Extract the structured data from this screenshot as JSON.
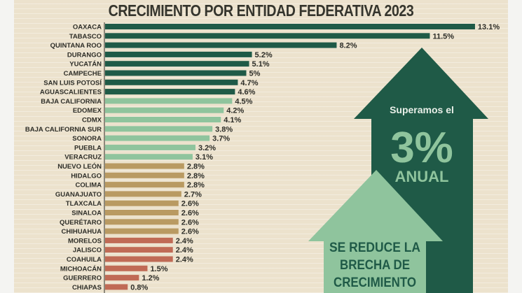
{
  "chart_data": {
    "type": "bar",
    "orientation": "horizontal",
    "title": "CRECIMIENTO POR ENTIDAD FEDERATIVA 2023",
    "value_suffix": "%",
    "categories": [
      "OAXACA",
      "TABASCO",
      "QUINTANA ROO",
      "DURANGO",
      "YUCATÁN",
      "CAMPECHE",
      "SAN LUIS POTOSÍ",
      "AGUASCALIENTES",
      "BAJA CALIFORNIA",
      "EDOMEX",
      "CDMX",
      "BAJA CALIFORNIA SUR",
      "SONORA",
      "PUEBLA",
      "VERACRUZ",
      "NUEVO LEÓN",
      "HIDALGO",
      "COLIMA",
      "GUANAJUATO",
      "TLAXCALA",
      "SINALOA",
      "QUERÉTARO",
      "CHIHUAHUA",
      "MORELOS",
      "JALISCO",
      "COAHUILA",
      "MICHOACÁN",
      "GUERRERO",
      "CHIAPAS"
    ],
    "values": [
      13.1,
      11.5,
      8.2,
      5.2,
      5.1,
      5,
      4.7,
      4.6,
      4.5,
      4.2,
      4.1,
      3.8,
      3.7,
      3.2,
      3.1,
      2.8,
      2.8,
      2.8,
      2.7,
      2.6,
      2.6,
      2.6,
      2.6,
      2.4,
      2.4,
      2.4,
      1.5,
      1.2,
      0.8
    ],
    "labels": [
      "13.1%",
      "11.5%",
      "8.2%",
      "5.2%",
      "5.1%",
      "5%",
      "4.7%",
      "4.6%",
      "4.5%",
      "4.2%",
      "4.1%",
      "3.8%",
      "3.7%",
      "3.2%",
      "3.1%",
      "2.8%",
      "2.8%",
      "2.8%",
      "2.7%",
      "2.6%",
      "2.6%",
      "2.6%",
      "2.6%",
      "2.4%",
      "2.4%",
      "2.4%",
      "1.5%",
      "1.2%",
      "0.8%"
    ],
    "color_groups": [
      {
        "count": 8,
        "color": "#1f5a47"
      },
      {
        "count": 7,
        "color": "#8fc49d"
      },
      {
        "count": 8,
        "color": "#b99a62"
      },
      {
        "count": 6,
        "color": "#c06a55"
      }
    ],
    "grid": false,
    "legend": "none"
  },
  "callouts": {
    "dark_arrow": {
      "line1": "Superamos el",
      "big": "3%",
      "line3": "ANUAL",
      "color": "#1f5a47",
      "text_color": "#8fc49d"
    },
    "light_arrow": {
      "lines": [
        "SE REDUCE LA",
        "BRECHA DE",
        "CRECIMIENTO"
      ],
      "color": "#8fc49d",
      "text_color": "#1f5a47"
    }
  }
}
